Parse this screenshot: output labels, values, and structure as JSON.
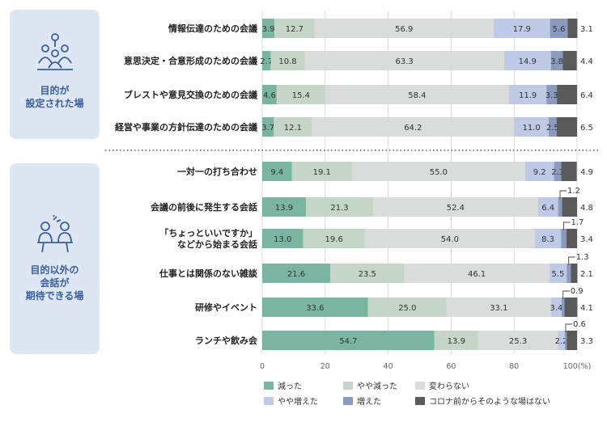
{
  "panels": [
    {
      "label": "目的が\n設定された場",
      "icon": "meeting-icon"
    },
    {
      "label": "目的以外の\n会話が\n期待できる場",
      "icon": "conversation-icon"
    }
  ],
  "chart_data": {
    "type": "bar",
    "orientation": "horizontal",
    "stacked": true,
    "xlim": [
      0,
      100
    ],
    "x_ticks": [
      "0",
      "20",
      "40",
      "60",
      "80",
      "100(%)"
    ],
    "grid": true,
    "legend_position": "bottom",
    "categories": [
      "情報伝達のための会議",
      "意思決定・合意形成のための会議",
      "ブレストや意見交換のための会議",
      "経営や事業の方針伝達のための会議",
      "一対一の打ち合わせ",
      "会議の前後に発生する会話",
      "「ちょっといいですか」\nなどから始まる会話",
      "仕事とは関係のない雑談",
      "研修やイベント",
      "ランチや飲み会"
    ],
    "series": [
      {
        "name": "減った",
        "color": "#7ab5a2",
        "values": [
          3.9,
          2.7,
          4.6,
          3.7,
          9.4,
          13.9,
          13.0,
          21.6,
          33.6,
          54.7
        ]
      },
      {
        "name": "やや減った",
        "color": "#c5d6c8",
        "values": [
          12.7,
          10.8,
          15.4,
          12.1,
          19.1,
          21.3,
          19.6,
          23.5,
          25.0,
          13.9
        ]
      },
      {
        "name": "変わらない",
        "color": "#dadbdb",
        "values": [
          56.9,
          63.3,
          58.4,
          64.2,
          55.0,
          52.4,
          54.0,
          46.1,
          33.1,
          25.3
        ]
      },
      {
        "name": "やや増えた",
        "color": "#bfcbe6",
        "values": [
          17.9,
          14.9,
          11.9,
          11.0,
          9.2,
          6.4,
          8.3,
          5.5,
          3.4,
          2.2
        ]
      },
      {
        "name": "増えた",
        "color": "#8b9bc0",
        "values": [
          5.6,
          3.8,
          3.3,
          2.5,
          2.3,
          1.2,
          1.7,
          1.3,
          0.9,
          0.6
        ]
      },
      {
        "name": "コロナ前からそのような場はない",
        "color": "#5a5a5a",
        "values": [
          3.1,
          4.4,
          6.4,
          6.5,
          4.9,
          4.8,
          3.4,
          2.1,
          4.1,
          3.3
        ]
      }
    ]
  }
}
